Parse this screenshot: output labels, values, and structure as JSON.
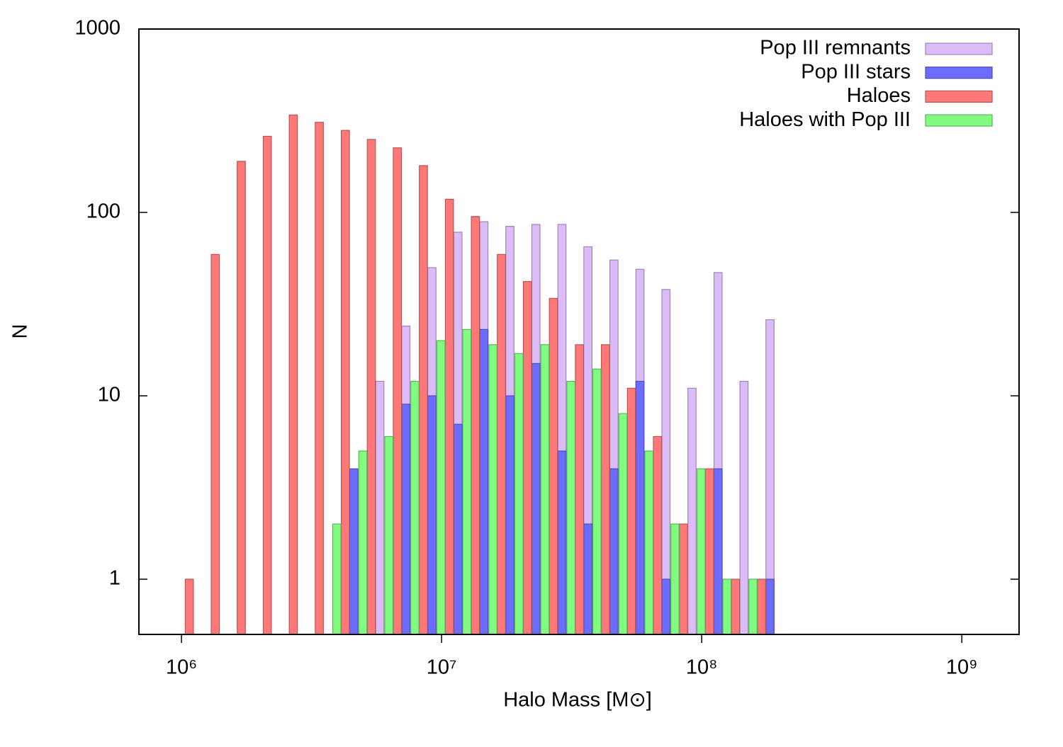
{
  "chart_data": {
    "type": "bar",
    "xlabel": "Halo Mass [M⊙]",
    "ylabel": "N",
    "xscale": "log",
    "yscale": "log",
    "xlim": [
      686000,
      1660000000
    ],
    "ylim": [
      0.5,
      1000
    ],
    "xticks": [
      {
        "value": 1000000,
        "label": "10⁶"
      },
      {
        "value": 10000000,
        "label": "10⁷"
      },
      {
        "value": 100000000,
        "label": "10⁸"
      },
      {
        "value": 1000000000,
        "label": "10⁹"
      }
    ],
    "yticks": [
      1,
      10,
      100,
      1000
    ],
    "legend": "upper right",
    "x": [
      1072000,
      1349000,
      1698000,
      2138000,
      2692000,
      3388000,
      4266000,
      5370000,
      6761000,
      8511000,
      10720000,
      13490000,
      16980000,
      21380000,
      26920000,
      33880000,
      42660000,
      53700000,
      67610000,
      85110000,
      107200000,
      134900000,
      169800000
    ],
    "series": [
      {
        "name": "Pop III remnants",
        "color": "#dcbcf8",
        "values": [
          null,
          null,
          null,
          null,
          null,
          null,
          null,
          12,
          24,
          50,
          78,
          89,
          84,
          86,
          86,
          65,
          55,
          49,
          38,
          11,
          47,
          12,
          26
        ]
      },
      {
        "name": "Pop III stars",
        "color": "#6c6cff",
        "values": [
          null,
          null,
          null,
          null,
          null,
          null,
          4,
          null,
          9,
          10,
          7,
          23,
          10,
          15,
          5,
          2,
          4,
          12,
          1,
          null,
          4,
          null,
          1
        ]
      },
      {
        "name": "Haloes",
        "color": "#ff7878",
        "values": [
          1,
          59,
          190,
          260,
          340,
          310,
          280,
          250,
          225,
          180,
          118,
          95,
          59,
          42,
          34,
          19,
          19,
          11,
          6,
          2,
          4,
          1,
          1
        ]
      },
      {
        "name": "Haloes with Pop III",
        "color": "#80fc80",
        "values": [
          null,
          null,
          null,
          null,
          null,
          null,
          2,
          5,
          6,
          12,
          20,
          23,
          19,
          17,
          19,
          12,
          14,
          8,
          5,
          2,
          4,
          1,
          1
        ]
      }
    ]
  }
}
